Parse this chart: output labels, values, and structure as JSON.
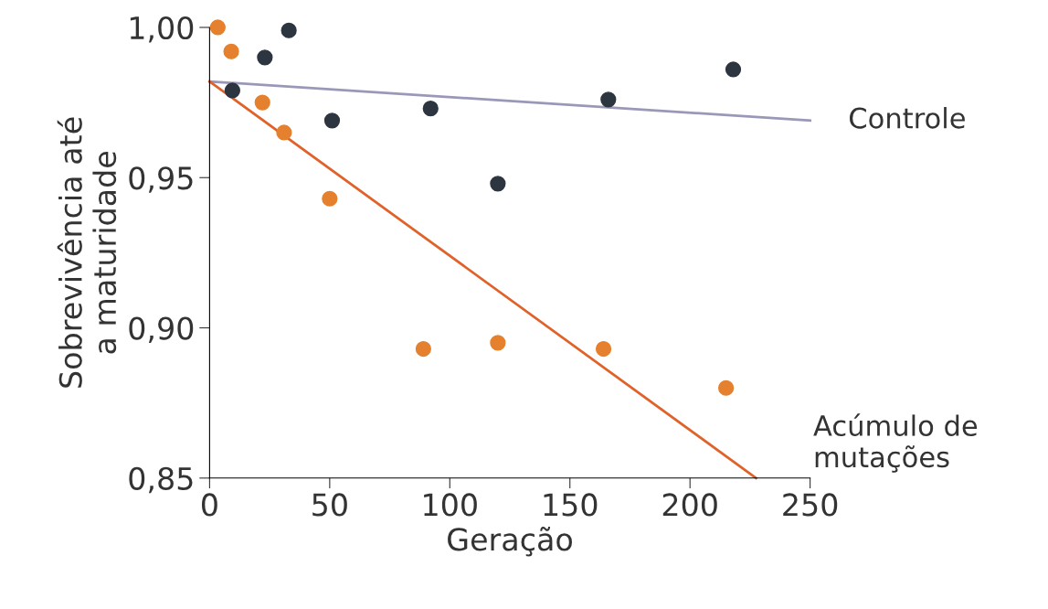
{
  "chart_data": {
    "type": "scatter",
    "xlabel": "Geração",
    "ylabel": "Sobrevivência até\na maturidade",
    "xlim": [
      0,
      250
    ],
    "xticks": [
      0,
      50,
      100,
      150,
      200,
      250
    ],
    "ylim": [
      0.85,
      1.0
    ],
    "yticks": [
      {
        "value": 0.85,
        "label": "0,85"
      },
      {
        "value": 0.9,
        "label": "0,90"
      },
      {
        "value": 0.95,
        "label": "0,95"
      },
      {
        "value": 1.0,
        "label": "1,00"
      }
    ],
    "grid": false,
    "marker": "circle",
    "series": [
      {
        "color": "#2d3540",
        "x": [
          9.5,
          23,
          33,
          51,
          92,
          120,
          166,
          218
        ],
        "values": [
          0.979,
          0.99,
          0.999,
          0.969,
          0.973,
          0.948,
          0.976,
          0.986
        ]
      },
      {
        "color": "#e5812e",
        "x": [
          3.4,
          9,
          22,
          31,
          50,
          89,
          120,
          164,
          215
        ],
        "values": [
          1.0,
          0.992,
          0.975,
          0.965,
          0.943,
          0.893,
          0.895,
          0.893,
          0.88
        ]
      },
      {
        "type": "line",
        "marker": "none",
        "name": "Controle",
        "color": "#9a98b8",
        "x": [
          0,
          250
        ],
        "values": [
          0.982,
          0.969
        ]
      },
      {
        "type": "line",
        "marker": "none",
        "name": "Acúmulo de\nmutações",
        "color": "#e0622a",
        "x": [
          0,
          227.5
        ],
        "values": [
          0.982,
          0.85
        ]
      }
    ]
  }
}
